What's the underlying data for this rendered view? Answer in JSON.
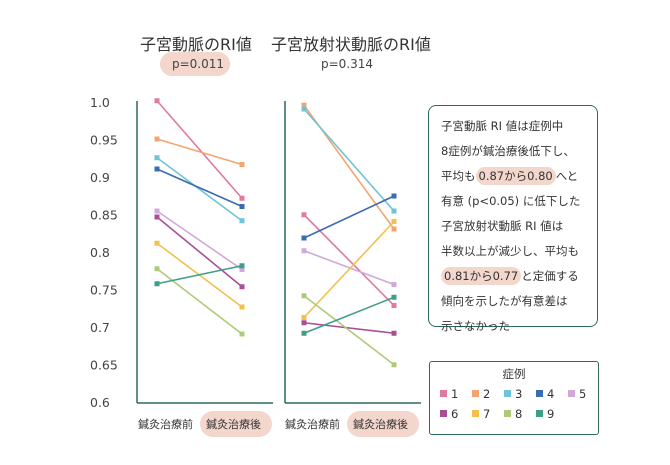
{
  "colors": {
    "axis": "#2e6b55",
    "highlight": "#f3d6cc",
    "series": [
      "#e07aa0",
      "#f5a46e",
      "#6fc3d6",
      "#3a6cb0",
      "#d0a9d8",
      "#a84f98",
      "#f2c04b",
      "#afc97a",
      "#3f9e8a"
    ]
  },
  "note": {
    "lines": [
      [
        {
          "text": "子宮動脈 RI 値は症例中"
        }
      ],
      [
        {
          "text": "8症例が鍼治療後低下し、"
        }
      ],
      [
        {
          "text": "平均も"
        },
        {
          "text": "0.87から0.80",
          "hl": true
        },
        {
          "text": "へと"
        }
      ],
      [
        {
          "text": "有意 (p<0.05) に低下した"
        }
      ],
      [
        {
          "text": "子宮放射状動脈 RI 値は"
        }
      ],
      [
        {
          "text": "半数以上が減少し、平均も"
        }
      ],
      [
        {
          "text": "0.81から0.77",
          "hl": true
        },
        {
          "text": "と定価する"
        }
      ],
      [
        {
          "text": "傾向を示したが有意差は"
        }
      ],
      [
        {
          "text": "示さなかった"
        }
      ]
    ]
  },
  "legend": {
    "title": "症例",
    "items": [
      "1",
      "2",
      "3",
      "4",
      "5",
      "6",
      "7",
      "8",
      "9"
    ]
  },
  "chart_data": [
    {
      "type": "line",
      "title": "子宮動脈のRI値",
      "subtitle": "p=0.011",
      "categories": [
        "鍼灸治療前",
        "鍼灸治療後"
      ],
      "ylim": [
        0.6,
        1.0
      ],
      "yticks": [
        "1.0",
        "0.95",
        "0.9",
        "0.85",
        "0.8",
        "0.75",
        "0.7",
        "0.65",
        "0.6"
      ],
      "series": [
        {
          "name": "1",
          "values": [
            1.003,
            0.873
          ]
        },
        {
          "name": "2",
          "values": [
            0.952,
            0.918
          ]
        },
        {
          "name": "3",
          "values": [
            0.927,
            0.843
          ]
        },
        {
          "name": "4",
          "values": [
            0.912,
            0.862
          ]
        },
        {
          "name": "5",
          "values": [
            0.856,
            0.778
          ]
        },
        {
          "name": "6",
          "values": [
            0.848,
            0.755
          ]
        },
        {
          "name": "7",
          "values": [
            0.813,
            0.728
          ]
        },
        {
          "name": "8",
          "values": [
            0.779,
            0.692
          ]
        },
        {
          "name": "9",
          "values": [
            0.759,
            0.783
          ]
        }
      ]
    },
    {
      "type": "line",
      "title": "子宮放射状動脈のRI値",
      "subtitle": "p=0.314",
      "categories": [
        "鍼灸治療前",
        "鍼灸治療後"
      ],
      "ylim": [
        0.6,
        1.0
      ],
      "series": [
        {
          "name": "1",
          "values": [
            0.851,
            0.73
          ]
        },
        {
          "name": "2",
          "values": [
            0.997,
            0.832
          ]
        },
        {
          "name": "3",
          "values": [
            0.992,
            0.856
          ]
        },
        {
          "name": "4",
          "values": [
            0.82,
            0.876
          ]
        },
        {
          "name": "5",
          "values": [
            0.803,
            0.758
          ]
        },
        {
          "name": "6",
          "values": [
            0.707,
            0.693
          ]
        },
        {
          "name": "7",
          "values": [
            0.714,
            0.842
          ]
        },
        {
          "name": "8",
          "values": [
            0.743,
            0.651
          ]
        },
        {
          "name": "9",
          "values": [
            0.693,
            0.741
          ]
        }
      ]
    }
  ]
}
